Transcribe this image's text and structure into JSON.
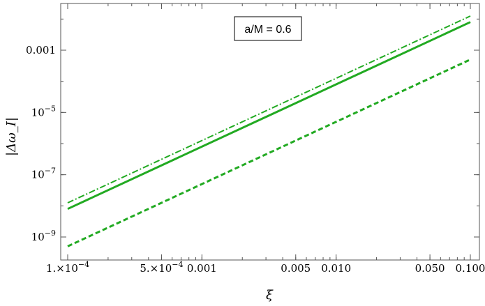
{
  "chart_data": {
    "type": "line",
    "x_scale": "log",
    "y_scale": "log",
    "xlabel": "ξ",
    "ylabel": "|Δω_I|",
    "xlim": [
      0.0001,
      0.1
    ],
    "ylim": [
      1e-10,
      0.01
    ],
    "grid": false,
    "annotation": "a/M = 0.6",
    "colors": {
      "series": "#22aa22",
      "frame": "#555555"
    },
    "x_ticks": [
      {
        "value": 0.0001,
        "label": "1.×10",
        "exp": "−4"
      },
      {
        "value": 0.0005,
        "label": "5.×10",
        "exp": "−4"
      },
      {
        "value": 0.001,
        "label": "0.001",
        "exp": ""
      },
      {
        "value": 0.005,
        "label": "0.005",
        "exp": ""
      },
      {
        "value": 0.01,
        "label": "0.010",
        "exp": ""
      },
      {
        "value": 0.05,
        "label": "0.050",
        "exp": ""
      },
      {
        "value": 0.1,
        "label": "0.100",
        "exp": ""
      }
    ],
    "y_ticks": [
      {
        "value": 0.001,
        "label": "0.001",
        "exp": ""
      },
      {
        "value": 1e-05,
        "label": "10",
        "exp": "−5"
      },
      {
        "value": 1e-07,
        "label": "10",
        "exp": "−7"
      },
      {
        "value": 1e-09,
        "label": "10",
        "exp": "−9"
      }
    ],
    "series": [
      {
        "style": "dash-dot",
        "x": [
          0.0001,
          0.1
        ],
        "y": [
          1.25e-08,
          0.0125
        ]
      },
      {
        "style": "solid",
        "x": [
          0.0001,
          0.1
        ],
        "y": [
          8e-09,
          0.008
        ]
      },
      {
        "style": "dashed",
        "x": [
          0.0001,
          0.1
        ],
        "y": [
          5e-10,
          0.0005
        ]
      }
    ]
  }
}
